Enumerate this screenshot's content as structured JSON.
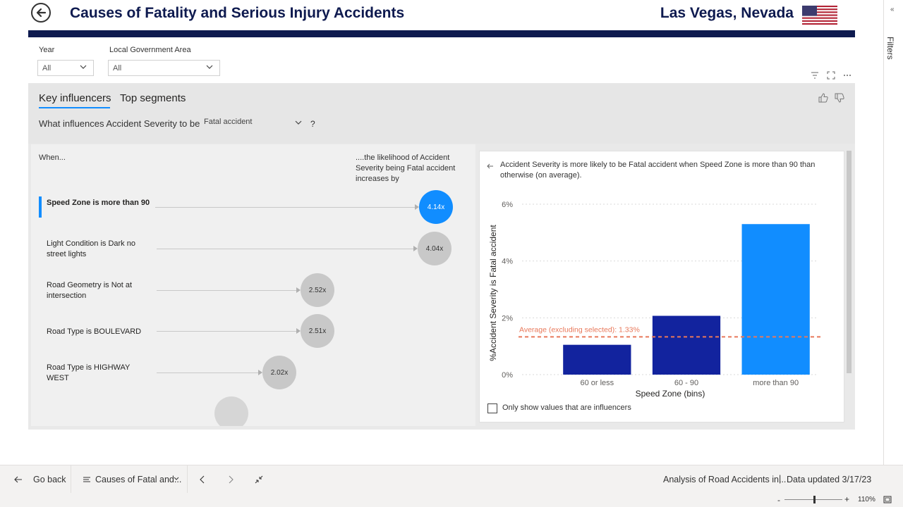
{
  "header": {
    "title": "Causes of Fatality and Serious Injury Accidents",
    "location": "Las Vegas, Nevada"
  },
  "filters": {
    "year_label": "Year",
    "year_value": "All",
    "lga_label": "Local Government Area",
    "lga_value": "All"
  },
  "visual": {
    "tabs": [
      "Key influencers",
      "Top segments"
    ],
    "question_prefix": "What influences Accident Severity to be",
    "question_value": "Fatal accident",
    "question_help": "?",
    "when_label": "When...",
    "likelihood_label": "....the likelihood of Accident Severity being Fatal accident increases by",
    "influencers": [
      {
        "label": "Speed Zone is more than 90",
        "value": "4.14x",
        "multiplier": 4.14,
        "selected": true
      },
      {
        "label": "Light Condition is Dark no street lights",
        "value": "4.04x",
        "multiplier": 4.04,
        "selected": false
      },
      {
        "label": "Road Geometry is Not at intersection",
        "value": "2.52x",
        "multiplier": 2.52,
        "selected": false
      },
      {
        "label": "Road Type is BOULEVARD",
        "value": "2.51x",
        "multiplier": 2.51,
        "selected": false
      },
      {
        "label": "Road Type is HIGHWAY WEST",
        "value": "2.02x",
        "multiplier": 2.02,
        "selected": false
      }
    ],
    "detail_text": "Accident Severity is more likely to be Fatal accident when Speed Zone is more than 90 than otherwise (on average).",
    "checkbox_label": "Only show values that are influencers"
  },
  "chart_data": {
    "type": "bar",
    "categories": [
      "60 or less",
      "60 - 90",
      "more than 90"
    ],
    "values": [
      1.05,
      2.07,
      5.3
    ],
    "xlabel": "Speed Zone (bins)",
    "ylabel": "%Accident Severity is Fatal accident",
    "ylim": [
      0,
      6
    ],
    "yticks": [
      "0%",
      "2%",
      "4%",
      "6%"
    ],
    "ytick_values": [
      0,
      2,
      4,
      6
    ],
    "reference_line": {
      "label": "Average (excluding selected): 1.33%",
      "value": 1.33
    },
    "colors": {
      "normal": "#12239e",
      "selected": "#118dff",
      "reference": "#e8785a"
    },
    "grid": true
  },
  "bottom_bar": {
    "go_back": "Go back",
    "page_name": "Causes of Fatal and...",
    "report_name": "Analysis of Road Accidents in...",
    "separator": "|",
    "data_updated": "Data updated 3/17/23",
    "zoom": "110%"
  },
  "filters_pane": {
    "label": "Filters"
  },
  "colors": {
    "navy": "#0e1a4f",
    "accent": "#118dff"
  }
}
